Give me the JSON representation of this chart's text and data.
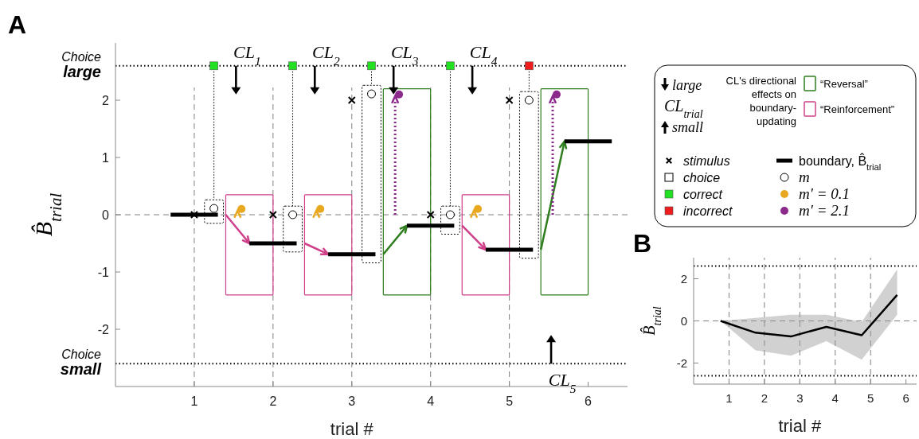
{
  "chart_data": [
    {
      "type": "scatter",
      "xlabel": "trial #",
      "ylabel": "B̂$_{trial}$",
      "xlim": [
        0,
        6.5
      ],
      "ylim": [
        -3,
        3
      ],
      "xticks": [
        1,
        2,
        3,
        4,
        5,
        6
      ],
      "yticks": [
        -2,
        -1,
        0,
        1,
        2
      ],
      "legend": "right",
      "series": [
        {
          "name": "stimulus",
          "marker": "cross",
          "color": "#000000",
          "x": [
            1,
            2,
            3,
            4,
            5
          ],
          "values": [
            0,
            0,
            2,
            0,
            2
          ]
        },
        {
          "name": "correct",
          "marker": "square",
          "color": "#22e022",
          "x": [
            1.25,
            2.25,
            3.25,
            4.25
          ],
          "values": [
            2.6,
            2.6,
            2.6,
            2.6
          ]
        },
        {
          "name": "incorrect",
          "marker": "square",
          "color": "#ee1c1c",
          "x": [
            5.25
          ],
          "values": [
            2.6
          ]
        },
        {
          "name": "boundary, B̂$_{trial}$",
          "type": "line",
          "marker": "none",
          "color": "#000000",
          "x": [
            0.7,
            1.3,
            1.4,
            1.7,
            2.3,
            2.4,
            2.7,
            3.3,
            3.4,
            3.7,
            4.3,
            4.4,
            4.7,
            5.3,
            5.4,
            5.7,
            6.3
          ],
          "values": [
            0,
            0,
            null,
            -0.5,
            -0.5,
            null,
            -0.69,
            -0.69,
            null,
            -0.19,
            -0.19,
            null,
            -0.61,
            -0.61,
            null,
            1.28,
            1.28
          ]
        },
        {
          "name": "m",
          "marker": "circle",
          "color": "#ffffff",
          "x": [
            1.25,
            2.25,
            3.25,
            4.25,
            5.25
          ],
          "values": [
            0.11,
            0,
            2.11,
            0,
            2.0
          ]
        },
        {
          "name": "m′ = 0.1",
          "marker": "circle",
          "color": "#e8a820",
          "x": [
            1.6,
            2.6,
            4.6
          ],
          "values": [
            0.1,
            0.1,
            0.1
          ]
        },
        {
          "name": "m′ = 2.1",
          "marker": "circle",
          "color": "#8b2a8b",
          "x": [
            3.6,
            5.6
          ],
          "values": [
            2.1,
            2.1
          ]
        }
      ],
      "ref_lines": [
        {
          "axis": "y",
          "value": 2.6,
          "label": "Choice large",
          "line_style": "dotted",
          "color": "#000000"
        },
        {
          "axis": "y",
          "value": -2.6,
          "label": "Choice small",
          "line_style": "dotted",
          "color": "#000000"
        },
        {
          "axis": "y",
          "value": 0,
          "line_style": "dashed",
          "color": "#808080"
        },
        {
          "axis": "x",
          "value": 1,
          "line_style": "dashed",
          "color": "#808080"
        },
        {
          "axis": "x",
          "value": 2,
          "line_style": "dashed",
          "color": "#808080"
        },
        {
          "axis": "x",
          "value": 3,
          "line_style": "dashed",
          "color": "#808080"
        },
        {
          "axis": "x",
          "value": 4,
          "line_style": "dashed",
          "color": "#808080"
        },
        {
          "axis": "x",
          "value": 5,
          "line_style": "dashed",
          "color": "#808080"
        }
      ],
      "annotations": [
        "A",
        "large",
        "CL$_{trial}$",
        "small",
        "CL's directional effects on boundary-updating",
        "“Reversal”",
        "“Reinforcement”",
        "choice",
        "CL$_{1}$",
        "CL$_{2}$",
        "CL$_{3}$",
        "CL$_{4}$",
        "CL$_{5}$"
      ]
    },
    {
      "type": "line",
      "xlabel": "trial #",
      "ylabel": "B̂$_{trial}$",
      "xlim": [
        0,
        6.3
      ],
      "ylim": [
        -3,
        3
      ],
      "xticks": [
        1,
        2,
        3,
        4,
        5,
        6
      ],
      "yticks": [
        -2,
        0,
        2
      ],
      "series": [
        {
          "color": "#000000",
          "x": [
            0.76,
            1.75,
            2.75,
            3.75,
            4.75,
            5.75
          ],
          "values": [
            0,
            -0.56,
            -0.74,
            -0.28,
            -0.68,
            1.23
          ],
          "lower": [
            0,
            -1.4,
            -1.65,
            -0.96,
            -1.84,
            0.29
          ],
          "upper": [
            0,
            0.14,
            0.29,
            0.29,
            -0.05,
            2.44
          ]
        }
      ],
      "ref_lines": [
        {
          "axis": "y",
          "value": 2.6,
          "line_style": "dotted",
          "color": "#000000"
        },
        {
          "axis": "y",
          "value": -2.6,
          "line_style": "dotted",
          "color": "#000000"
        },
        {
          "axis": "y",
          "value": 0,
          "line_style": "dashed",
          "color": "#808080"
        },
        {
          "axis": "x",
          "value": 1,
          "line_style": "dashed",
          "color": "#808080"
        },
        {
          "axis": "x",
          "value": 2,
          "line_style": "dashed",
          "color": "#808080"
        },
        {
          "axis": "x",
          "value": 3,
          "line_style": "dashed",
          "color": "#808080"
        },
        {
          "axis": "x",
          "value": 4,
          "line_style": "dashed",
          "color": "#808080"
        },
        {
          "axis": "x",
          "value": 5,
          "line_style": "dashed",
          "color": "#808080"
        }
      ],
      "annotations": [
        "B"
      ]
    }
  ]
}
